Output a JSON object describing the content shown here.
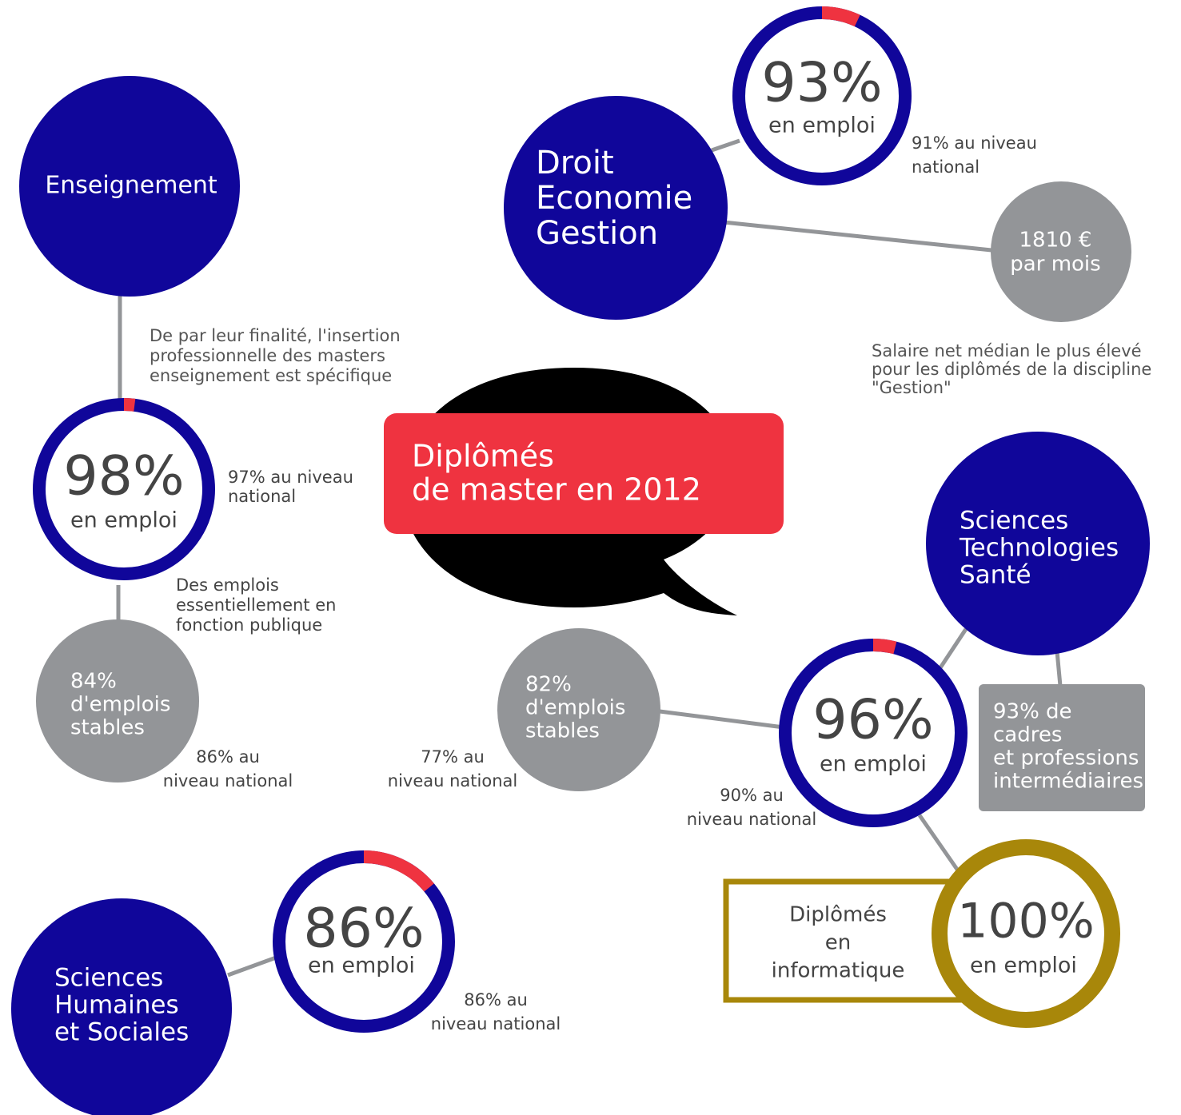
{
  "title": {
    "lines": [
      "Diplômés",
      "de master en 2012"
    ]
  },
  "enseignement": {
    "name": "Enseignement",
    "rate": {
      "value": 98,
      "label": "98%"
    },
    "rate_caption": "en emploi",
    "national": [
      "97% au niveau",
      "national"
    ],
    "note": [
      "De par leur finalité, l'insertion",
      "professionnelle des masters",
      "enseignement est spécifique"
    ],
    "stable": [
      "84%",
      "d'emplois",
      "stables"
    ],
    "stable_note": [
      "Des emplois",
      "essentiellement en",
      "fonction publique"
    ],
    "stable_national": [
      "86% au",
      "niveau national"
    ]
  },
  "droit": {
    "name": [
      "Droit",
      "Economie",
      "Gestion"
    ],
    "rate": {
      "value": 93,
      "label": "93%"
    },
    "rate_caption": "en emploi",
    "national": [
      "91% au niveau",
      "national"
    ],
    "salary": [
      "1810 €",
      "par mois"
    ],
    "salary_note": [
      "Salaire net médian le plus élevé",
      "pour les diplômés de la discipline",
      "\"Gestion\""
    ]
  },
  "sciences": {
    "name": [
      "Sciences",
      "Technologies",
      "Santé"
    ],
    "rate": {
      "value": 96,
      "label": "96%"
    },
    "rate_caption": "en emploi",
    "national": [
      "90% au",
      "niveau national"
    ],
    "stable": [
      "82%",
      "d'emplois",
      "stables"
    ],
    "stable_national": [
      "77% au",
      "niveau national"
    ],
    "cadres": [
      "93% de",
      "cadres",
      "et professions",
      "intermédiaires"
    ],
    "informatique": {
      "name": [
        "Diplômés",
        "en",
        "informatique"
      ],
      "rate": {
        "value": 100,
        "label": "100%"
      },
      "rate_caption": "en emploi"
    }
  },
  "shs": {
    "name": [
      "Sciences",
      "Humaines",
      "et Sociales"
    ],
    "rate": {
      "value": 86,
      "label": "86%"
    },
    "rate_caption": "en emploi",
    "national": [
      "86% au",
      "niveau national"
    ]
  }
}
